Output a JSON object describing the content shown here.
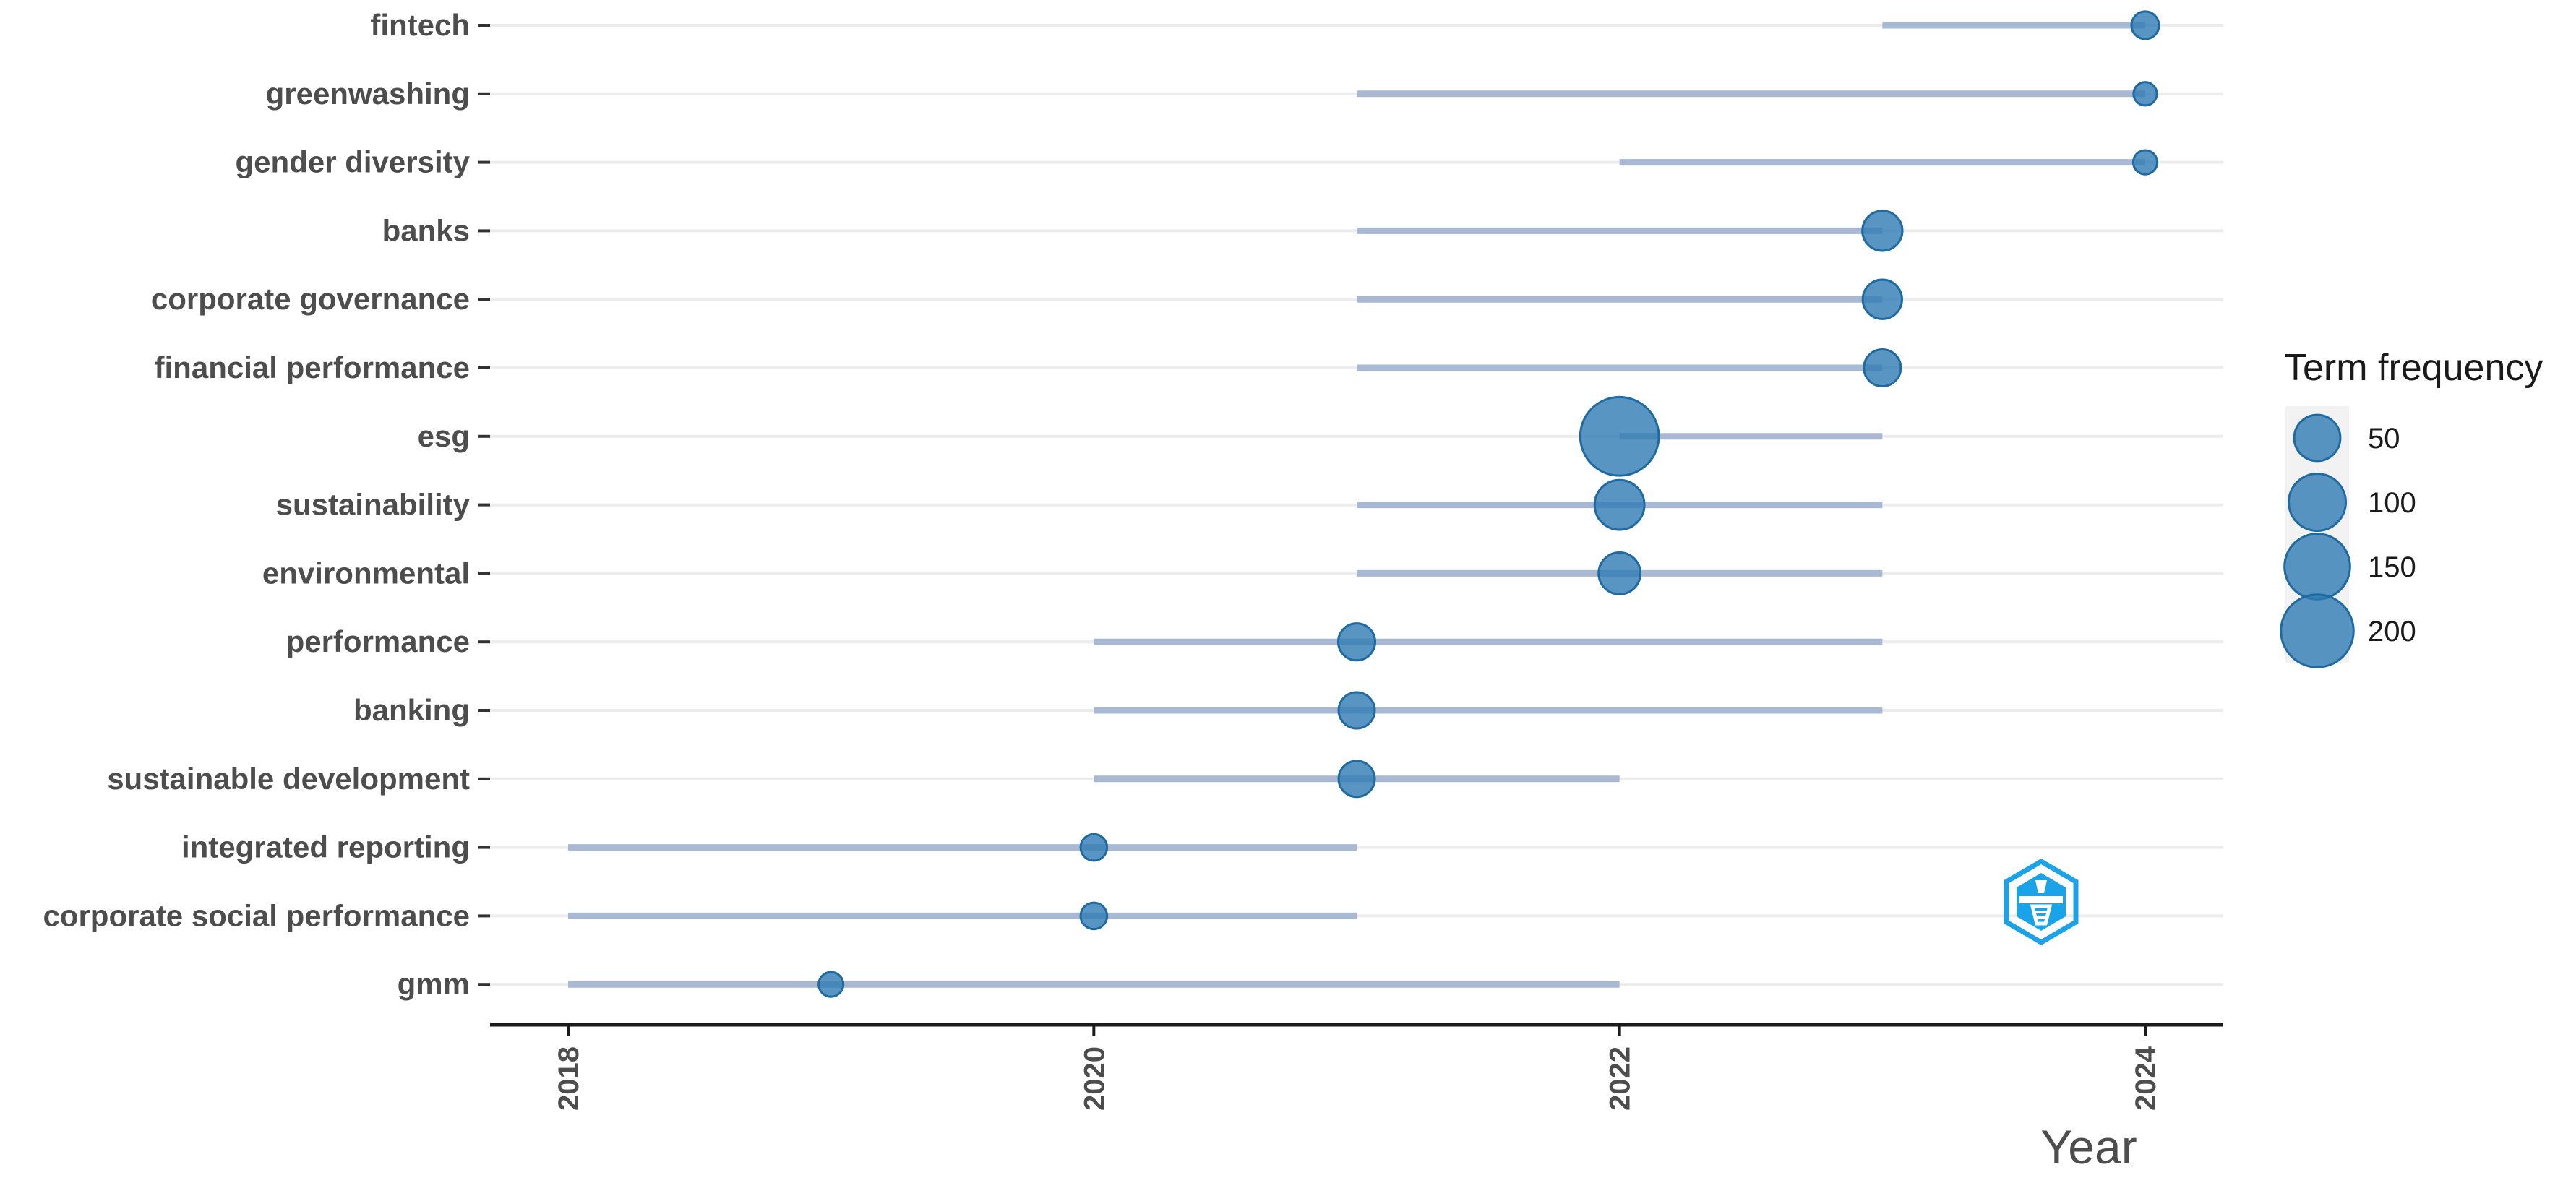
{
  "chart_data": {
    "type": "scatter",
    "subtype": "trend-topics-timeline",
    "title": "",
    "xlabel": "Year",
    "ylabel": "",
    "xlim": [
      2017.85,
      2024.3
    ],
    "x_ticks": [
      2018,
      2020,
      2022,
      2024
    ],
    "grid": true,
    "legend": {
      "title": "Term frequency",
      "placement": "right",
      "entries": [
        {
          "label": "50",
          "value": 50
        },
        {
          "label": "100",
          "value": 100
        },
        {
          "label": "150",
          "value": 150
        },
        {
          "label": "200",
          "value": 200
        }
      ]
    },
    "colors": {
      "point_fill": "#2e7bb3",
      "point_stroke": "#1f6aa0",
      "range_line": "#a9b8d3",
      "grid": "#ececec",
      "axis": "#1a1a1a",
      "logo": "#1aa3e8"
    },
    "terms": [
      {
        "term": "fintech",
        "year_q1": 2023,
        "year_median": 2024,
        "year_q3": 2024,
        "freq": 22
      },
      {
        "term": "greenwashing",
        "year_q1": 2021,
        "year_median": 2024,
        "year_q3": 2024,
        "freq": 15
      },
      {
        "term": "gender diversity",
        "year_q1": 2022,
        "year_median": 2024,
        "year_q3": 2024,
        "freq": 16
      },
      {
        "term": "banks",
        "year_q1": 2021,
        "year_median": 2023,
        "year_q3": 2023,
        "freq": 50
      },
      {
        "term": "corporate governance",
        "year_q1": 2021,
        "year_median": 2023,
        "year_q3": 2023,
        "freq": 48
      },
      {
        "term": "financial performance",
        "year_q1": 2021,
        "year_median": 2023,
        "year_q3": 2023,
        "freq": 42
      },
      {
        "term": "esg",
        "year_q1": 2022,
        "year_median": 2022,
        "year_q3": 2023,
        "freq": 210
      },
      {
        "term": "sustainability",
        "year_q1": 2021,
        "year_median": 2022,
        "year_q3": 2023,
        "freq": 80
      },
      {
        "term": "environmental",
        "year_q1": 2021,
        "year_median": 2022,
        "year_q3": 2023,
        "freq": 55
      },
      {
        "term": "performance",
        "year_q1": 2020,
        "year_median": 2021,
        "year_q3": 2023,
        "freq": 42
      },
      {
        "term": "banking",
        "year_q1": 2020,
        "year_median": 2021,
        "year_q3": 2023,
        "freq": 40
      },
      {
        "term": "sustainable development",
        "year_q1": 2020,
        "year_median": 2021,
        "year_q3": 2022,
        "freq": 40
      },
      {
        "term": "integrated reporting",
        "year_q1": 2018,
        "year_median": 2020,
        "year_q3": 2021,
        "freq": 20
      },
      {
        "term": "corporate social performance",
        "year_q1": 2018,
        "year_median": 2020,
        "year_q3": 2021,
        "freq": 20
      },
      {
        "term": "gmm",
        "year_q1": 2018,
        "year_median": 2019,
        "year_q3": 2022,
        "freq": 17
      }
    ]
  }
}
